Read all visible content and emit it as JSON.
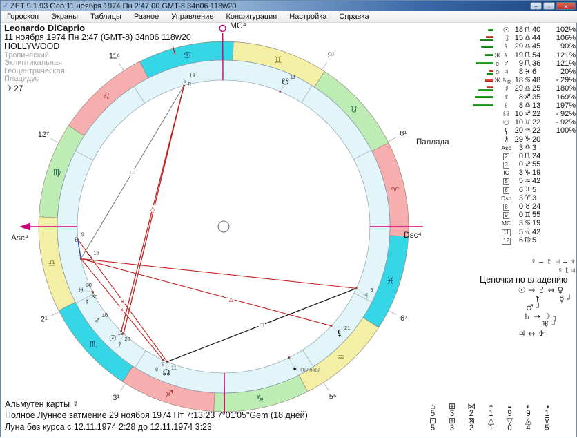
{
  "window": {
    "icon": "✓",
    "title": "ZET 9.1.93 Geo   11 ноября 1974  Пн   2:47:00 GMT-8 34n06  118w20",
    "min": "–",
    "max": "▫",
    "close": "✕"
  },
  "menu": {
    "items": [
      "Гороскоп",
      "Экраны",
      "Таблицы",
      "Разное",
      "Управление",
      "Конфигурация",
      "Настройка",
      "Справка"
    ]
  },
  "header": {
    "name": "Leonardo DiCaprio",
    "birth": "11 ноября 1974  Пн   2:47 (GMT-8) 34n06  118w20",
    "place": "HOLLYWOOD"
  },
  "settings": {
    "lines": [
      "Тропический",
      "Эклиптикальная",
      "Геоцентрическая",
      "Плацидус"
    ],
    "moon_day_glyph": "☽",
    "moon_day": "27"
  },
  "chart_data": {
    "type": "natal-wheel",
    "accent": "#cc0077",
    "element_colors": {
      "fire": "#f6aeae",
      "earth": "#bdecb5",
      "air": "#f3f0a6",
      "water": "#35d6e6"
    },
    "element_glyph_colors": {
      "fire": "#993333",
      "earth": "#226644",
      "air": "#887722",
      "water": "#114466"
    },
    "signs": [
      {
        "glyph": "♈",
        "element": "fire"
      },
      {
        "glyph": "♉",
        "element": "earth"
      },
      {
        "glyph": "♊",
        "element": "air"
      },
      {
        "glyph": "♋",
        "element": "water"
      },
      {
        "glyph": "♌",
        "element": "fire"
      },
      {
        "glyph": "♍",
        "element": "earth"
      },
      {
        "glyph": "♎",
        "element": "air"
      },
      {
        "glyph": "♏",
        "element": "water"
      },
      {
        "glyph": "♐",
        "element": "fire"
      },
      {
        "glyph": "♑",
        "element": "earth"
      },
      {
        "glyph": "♒",
        "element": "air"
      },
      {
        "glyph": "♓",
        "element": "water"
      }
    ],
    "house_cusps": [
      183.05,
      210.4,
      240.92,
      273.32,
      305.7,
      336.08,
      3.05,
      30.4,
      60.92,
      93.32,
      125.7,
      156.08
    ],
    "cusp_labels": [
      {
        "house": 2,
        "label": "2¹"
      },
      {
        "house": 3,
        "label": "3¹"
      },
      {
        "house": 5,
        "label": "5⁶"
      },
      {
        "house": 6,
        "label": "6⁷"
      },
      {
        "house": 8,
        "label": "8¹"
      },
      {
        "house": 9,
        "label": "9¹"
      },
      {
        "house": 11,
        "label": "11⁶"
      },
      {
        "house": 12,
        "label": "12⁷"
      }
    ],
    "axes": {
      "asc": "Asc⁴",
      "dsc": "Dsc⁴",
      "mc": "MC⁴"
    },
    "pallas_caption": "Паллада",
    "planets": [
      {
        "name": "sun",
        "glyph": "☉",
        "lon": 228.67,
        "dlon": 228.25,
        "r": 228,
        "deg": "19"
      },
      {
        "name": "moon",
        "glyph": "☽",
        "lon": 195.73,
        "dlon": 196.2,
        "r": 201,
        "deg": "16"
      },
      {
        "name": "mercury",
        "glyph": "☿",
        "lon": 209.75,
        "dlon": 211.9,
        "r": 226,
        "deg": "30"
      },
      {
        "name": "venus",
        "glyph": "♀",
        "lon": 229.9,
        "dlon": 231.5,
        "r": 227,
        "deg": "20"
      },
      {
        "name": "mars",
        "glyph": "♂",
        "lon": 219.6,
        "dlon": 219.6,
        "r": 228,
        "deg": "10"
      },
      {
        "name": "jupiter",
        "glyph": "♃",
        "lon": 338.1,
        "dlon": 337.3,
        "r": 228,
        "deg": "9"
      },
      {
        "name": "saturn",
        "glyph": "♄",
        "lon": 108.8,
        "dlon": 108.0,
        "r": 219,
        "deg": "19",
        "retro": true
      },
      {
        "name": "uranus",
        "glyph": "♅",
        "lon": 209.42,
        "dlon": 207.1,
        "r": 226,
        "deg": "30"
      },
      {
        "name": "neptune",
        "glyph": "♆",
        "lon": 248.58,
        "dlon": 247.9,
        "r": 228,
        "deg": "9"
      },
      {
        "name": "pluto",
        "glyph": "♇",
        "lon": 188.22,
        "dlon": 188.0,
        "r": 214,
        "deg": "9"
      },
      {
        "name": "node",
        "glyph": "☊",
        "lon": 250.37,
        "dlon": 251.6,
        "r": 227,
        "deg": "11"
      },
      {
        "name": "snode",
        "glyph": "☋",
        "lon": 70.37,
        "dlon": 69.9,
        "r": 228,
        "deg": "11"
      },
      {
        "name": "lilith",
        "glyph": "⚸",
        "lon": 320.37,
        "dlon": 320.5,
        "r": 228,
        "deg": "21"
      },
      {
        "name": "pallas",
        "glyph": "✶",
        "lon": 299.6,
        "dlon": 299.6,
        "r": 231,
        "deg": "",
        "caption": "Паллада"
      }
    ],
    "aspects": [
      {
        "a": "saturn",
        "b": "moon",
        "color": "#808080",
        "w": 1.1,
        "marker": "□",
        "t": 0.5
      },
      {
        "a": "saturn",
        "b": "sun",
        "color": "#c42020",
        "w": 1.3,
        "marker": "△",
        "t": 0.5
      },
      {
        "a": "saturn",
        "b": "venus",
        "color": "#c42020",
        "w": 1.3
      },
      {
        "a": "moon",
        "b": "neptune",
        "color": "#c42020",
        "w": 1.1,
        "marker": "⚹",
        "t": 0.5
      },
      {
        "a": "pluto",
        "b": "node",
        "color": "#c42020",
        "w": 1.1,
        "marker": "⚹",
        "t": 0.5
      },
      {
        "a": "moon",
        "b": "jupiter",
        "color": "#c42020",
        "w": 1.1
      },
      {
        "a": "moon",
        "b": "lilith",
        "color": "#c42020",
        "w": 1.1,
        "marker": "△",
        "t": 0.6
      },
      {
        "a": "node",
        "b": "jupiter",
        "color": "#1a1a1a",
        "w": 1.2,
        "marker": "□",
        "t": 0.5
      },
      {
        "a": "pluto",
        "b": "moon",
        "color": "#3344bb",
        "w": 1.4
      }
    ]
  },
  "planet_table": {
    "rows": [
      {
        "bar_g": 8,
        "bar_r": 0,
        "status": "",
        "glyph": "☉",
        "deg": "18",
        "sign": "♏",
        "min": "40",
        "pct": "102%"
      },
      {
        "bar_g": 20,
        "bar_r": 11,
        "status": "",
        "glyph": "☽",
        "deg": "15",
        "sign": "♎",
        "min": "44",
        "pct": "106%"
      },
      {
        "bar_g": 18,
        "bar_r": 0,
        "status": "",
        "glyph": "☿",
        "deg": "29",
        "sign": "♎",
        "min": "45",
        "pct": "90%"
      },
      {
        "bar_g": 13,
        "bar_r": 0,
        "status": "Ж",
        "glyph": "♀",
        "deg": "19",
        "sign": "♏",
        "min": "54",
        "pct": "121%"
      },
      {
        "bar_g": 26,
        "bar_r": 0,
        "status": "о",
        "glyph": "♂",
        "deg": "9",
        "sign": "♏",
        "min": "36",
        "pct": "121%"
      },
      {
        "bar_g": 10,
        "bar_r": 6,
        "status": "о",
        "glyph": "♃",
        "deg": "8",
        "sign": "♓",
        "min": "6",
        "pct": "20%"
      },
      {
        "bar_g": 0,
        "bar_r": 13,
        "status": "Ж",
        "glyph": "♄",
        "retro": true,
        "deg": "18",
        "sign": "♋",
        "min": "48",
        "pct": "- 29%"
      },
      {
        "bar_g": 22,
        "bar_r": 10,
        "status": "",
        "glyph": "♅",
        "deg": "29",
        "sign": "♎",
        "min": "25",
        "pct": "180%"
      },
      {
        "bar_g": 27,
        "bar_r": 0,
        "status": "",
        "glyph": "♆",
        "deg": "8",
        "sign": "♐",
        "min": "35",
        "pct": "169%"
      },
      {
        "bar_g": 30,
        "bar_r": 0,
        "status": "",
        "glyph": "♇",
        "deg": "8",
        "sign": "♎",
        "min": "13",
        "pct": "197%"
      },
      {
        "status": "",
        "glyph": "☊",
        "gray": true,
        "deg": "10",
        "sign": "♐",
        "min": "22",
        "pct": "- 92%"
      },
      {
        "status": "",
        "glyph": "☋",
        "gray": true,
        "deg": "10",
        "sign": "♊",
        "min": "22",
        "pct": "- 92%"
      },
      {
        "status": "",
        "glyph": "⚸",
        "deg": "20",
        "sign": "♒",
        "min": "22",
        "pct": "100%"
      },
      {
        "status": "",
        "glyph": "⚷",
        "deg": "29",
        "sign": "♑",
        "min": "20",
        "pct": ""
      },
      {
        "status": "",
        "glyph": "Asc",
        "small": true,
        "deg": "3",
        "sign": "♎",
        "min": "3",
        "pct": ""
      },
      {
        "status": "",
        "glyph": "2",
        "box": true,
        "deg": "0",
        "sign": "♏",
        "min": "24",
        "pct": ""
      },
      {
        "status": "",
        "glyph": "3",
        "box": true,
        "deg": "0",
        "sign": "♐",
        "min": "55",
        "pct": ""
      },
      {
        "status": "",
        "glyph": "IC",
        "small": true,
        "deg": "3",
        "sign": "♑",
        "min": "19",
        "pct": ""
      },
      {
        "status": "",
        "glyph": "5",
        "box": true,
        "deg": "5",
        "sign": "♒",
        "min": "42",
        "pct": ""
      },
      {
        "status": "",
        "glyph": "6",
        "box": true,
        "deg": "6",
        "sign": "♓",
        "min": "5",
        "pct": ""
      },
      {
        "status": "",
        "glyph": "Dsc",
        "small": true,
        "deg": "3",
        "sign": "♈",
        "min": "3",
        "pct": ""
      },
      {
        "status": "",
        "glyph": "8",
        "box": true,
        "deg": "0",
        "sign": "♉",
        "min": "24",
        "pct": ""
      },
      {
        "status": "",
        "glyph": "9",
        "box": true,
        "deg": "0",
        "sign": "♊",
        "min": "55",
        "pct": ""
      },
      {
        "status": "",
        "glyph": "MC",
        "small": true,
        "deg": "3",
        "sign": "♋",
        "min": "19",
        "pct": ""
      },
      {
        "status": "",
        "glyph": "11",
        "box": true,
        "deg": "5",
        "sign": "♌",
        "min": "42",
        "pct": ""
      },
      {
        "status": "",
        "glyph": "12",
        "box": true,
        "deg": "6",
        "sign": "♍",
        "min": "5",
        "pct": ""
      }
    ]
  },
  "dispositors": {
    "eq1": "♀ = ♇   ♃ = ♆",
    "eq2": "♀ t ♃",
    "title": "Цепочки по владению",
    "chain_lines": [
      "  ☉ → ♇ ↔ ♀",
      "        ↑       ☿ ┘",
      "     ♂ ┘",
      "    ♄ → ☽ ┐",
      "           ♅ ┘",
      "  ♃ ↔ ♆"
    ]
  },
  "stats": {
    "left": {
      "glyphs1": [
        "⌂",
        "⊞",
        "⋈"
      ],
      "vals1": [
        "5",
        "3",
        "2"
      ],
      "glyphs2": [
        "⊡",
        "⊞",
        "⊠"
      ],
      "vals2": [
        "5",
        "3",
        "2"
      ]
    },
    "right": {
      "glyphs1": [
        "◓",
        "◒",
        "◐",
        "◑"
      ],
      "vals1": [
        "1",
        "9",
        "9",
        "1"
      ],
      "glyphs2": [
        "△",
        "▽",
        "◬",
        "⊽"
      ],
      "vals2": [
        "1",
        "0",
        "4",
        "5"
      ]
    }
  },
  "footer": {
    "lines": [
      "Альмутен карты  ☿",
      "Полное Лунное затмение 29 ноября 1974 Пт  7:13:23  7°01'05\"Gem (18 дней)",
      "Луна без курса с 12.11.1974  2:28 до 12.11.1974  3:23"
    ]
  }
}
